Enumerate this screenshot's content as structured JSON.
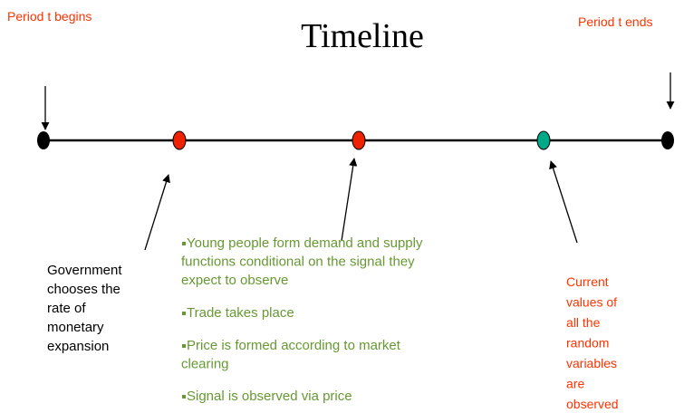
{
  "title": "Timeline",
  "start_label": "Period t begins",
  "end_label": "Period t ends",
  "government_note": {
    "lines": [
      "Government",
      "chooses the",
      "rate of",
      "monetary",
      "expansion"
    ]
  },
  "bullets": [
    {
      "lines": [
        "Young people form demand and supply",
        "functions conditional on the signal they",
        "expect to observe"
      ]
    },
    {
      "lines": [
        "Trade takes place"
      ]
    },
    {
      "lines": [
        "Price is formed according to market",
        "clearing"
      ]
    },
    {
      "lines": [
        "Signal is observed via price"
      ]
    }
  ],
  "observation_note": {
    "lines": [
      "Current",
      "values of",
      "all the",
      "random",
      "variables",
      "are",
      "observed"
    ]
  }
}
